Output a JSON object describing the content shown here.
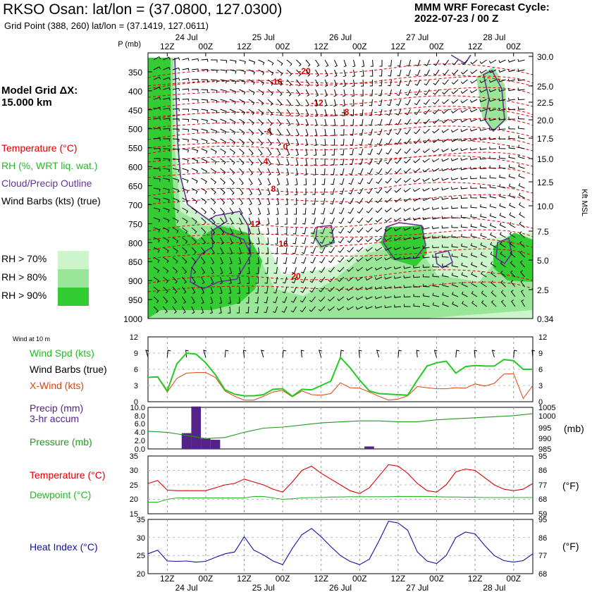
{
  "header": {
    "title": "RKSO Osan:  lat/lon = (37.0800, 127.0300)",
    "subtitle": "Grid Point (388, 260) lat/lon = (37.1419, 127.0611)",
    "forecast_label": "MMM WRF Forecast Cycle:",
    "forecast_cycle": "2022-07-23 / 00  Z",
    "grid_label": "Model Grid ΔX:",
    "grid_value": " 15.000 km"
  },
  "colors": {
    "temperature": "#dd0000",
    "rh": "#22bb22",
    "cloud": "#663399",
    "wind_speed": "#22cc22",
    "crosswind": "#dd4411",
    "precip": "#552288",
    "pressure": "#229922",
    "dewpoint": "#22bb22",
    "heat_index": "#1111aa",
    "rh70": "#ccf5cc",
    "rh80": "#99e699",
    "rh90": "#33cc33"
  },
  "legend": {
    "temperature": "Temperature (°C)",
    "rh": "RH (%, WRT liq. wat.)",
    "cloud": "Cloud/Precip Outline",
    "wind_barbs": "Wind Barbs (kts) (true)",
    "rh70": "RH > 70%",
    "rh80": "RH > 80%",
    "rh90": "RH > 90%"
  },
  "time_axis": {
    "top_labels": [
      "12Z",
      "00Z",
      "12Z",
      "00Z",
      "12Z",
      "00Z",
      "12Z",
      "00Z",
      "12Z",
      "00Z"
    ],
    "date_labels": [
      "24 Jul",
      "25 Jul",
      "26 Jul",
      "27 Jul",
      "28 Jul"
    ]
  },
  "chart_data": [
    {
      "type": "heatmap",
      "name": "cross_section",
      "y_left_label": "P (mb)",
      "y_right_label": "Kft MSL",
      "pressure_ticks": [
        350,
        400,
        450,
        500,
        550,
        600,
        650,
        700,
        750,
        800,
        850,
        900,
        950,
        1000
      ],
      "height_ticks": [
        "30.0",
        "25.0",
        "22.5",
        "20.0",
        "17.5",
        "15.0",
        "12.5",
        "10.0",
        "7.5",
        "5.0",
        "2.5",
        "0.34"
      ],
      "temperature_contour_labels": [
        "-20",
        "-16",
        "-12",
        "-8",
        "-4",
        "0",
        "4",
        "8",
        "12",
        "16",
        "20"
      ]
    },
    {
      "type": "line",
      "name": "surface_wind",
      "section_label": "Wind at 10 m",
      "labels": [
        "Wind Spd (kts)",
        "Wind Barbs (true)",
        "X-Wind (kts)"
      ],
      "y_ticks": [
        "12",
        "9",
        "6",
        "3",
        "0"
      ],
      "ylim": [
        0,
        12
      ],
      "x": [
        0,
        3,
        6,
        9,
        12,
        15,
        18,
        21,
        24,
        27,
        30,
        33,
        36,
        39,
        42,
        45,
        48,
        51,
        54,
        57,
        60,
        63,
        66,
        69,
        72,
        75,
        78,
        81,
        84,
        87,
        90,
        93,
        96,
        99,
        102,
        105,
        108,
        111,
        114,
        117,
        120
      ],
      "series": [
        {
          "name": "Wind Spd (kts)",
          "values": [
            4.5,
            4.6,
            2,
            7,
            9,
            8.8,
            7.2,
            5,
            2.2,
            1.4,
            1.1,
            1.1,
            1.3,
            2.3,
            2.4,
            1,
            2.3,
            2.2,
            3,
            3.8,
            8.2,
            6.3,
            4,
            2,
            1.5,
            1.4,
            1.3,
            1.2,
            4,
            6.6,
            7.2,
            7.5,
            5.3,
            6.5,
            6.7,
            6.6,
            6.6,
            7.8,
            7.6,
            6,
            6
          ]
        },
        {
          "name": "X-Wind (kts)",
          "values": [
            4.5,
            4.5,
            1.8,
            4.3,
            5.3,
            5.4,
            5.4,
            4.5,
            2,
            1,
            0.3,
            0.3,
            1,
            1.8,
            2.1,
            0.9,
            2,
            1.3,
            1.2,
            1.5,
            3.5,
            2.6,
            2.5,
            1.8,
            1,
            0.3,
            0.5,
            1.1,
            2.8,
            2.6,
            2.4,
            2.4,
            2.6,
            2.5,
            3.3,
            2.9,
            3.4,
            5.1,
            5.2,
            0.6,
            3
          ]
        }
      ]
    },
    {
      "type": "bar",
      "name": "precipitation",
      "labels": [
        "Precip (mm)",
        "3-hr accum"
      ],
      "y_ticks": [
        "10.0",
        "8.0",
        "6.0",
        "4.0",
        "2.0",
        "0.0"
      ],
      "ylim": [
        0,
        10
      ],
      "x": [
        12,
        15,
        18,
        21,
        69
      ],
      "values": [
        3.8,
        10.2,
        2.5,
        2.2,
        0.6
      ]
    },
    {
      "type": "line",
      "name": "pressure",
      "labels": [
        "Pressure (mb)"
      ],
      "right_label": "(mb)",
      "y_ticks": [
        "1005",
        "1000",
        "995",
        "990",
        "985"
      ],
      "ylim": [
        985,
        1005
      ],
      "x": [
        0,
        6,
        12,
        18,
        24,
        30,
        36,
        42,
        48,
        54,
        60,
        66,
        72,
        78,
        84,
        90,
        96,
        102,
        108,
        114,
        120
      ],
      "values": [
        993.5,
        993,
        991.5,
        990,
        990.5,
        993,
        995,
        995.5,
        996.5,
        997.5,
        998,
        998.5,
        998.5,
        998,
        998,
        999,
        999.5,
        1000,
        1000.5,
        1001,
        1002
      ]
    },
    {
      "type": "line",
      "name": "temperature_dewpoint",
      "labels": [
        "Temperature (°C)",
        "Dewpoint (°C)"
      ],
      "right_label": "(°F)",
      "y_ticks_left": [
        "35",
        "30",
        "25",
        "20",
        "15"
      ],
      "y_ticks_right": [
        "95",
        "86",
        "77",
        "68",
        "59"
      ],
      "ylim": [
        15,
        35
      ],
      "x": [
        0,
        3,
        6,
        9,
        12,
        15,
        18,
        21,
        24,
        27,
        30,
        33,
        36,
        39,
        42,
        45,
        48,
        51,
        54,
        57,
        60,
        63,
        66,
        69,
        72,
        75,
        78,
        81,
        84,
        87,
        90,
        93,
        96,
        99,
        102,
        105,
        108,
        111,
        114,
        117,
        120
      ],
      "series": [
        {
          "name": "Temperature (°C)",
          "values": [
            25.5,
            26.5,
            23.2,
            23,
            23,
            23,
            23,
            24,
            25,
            25.5,
            27,
            26,
            25,
            23.5,
            22.5,
            26,
            30,
            31.5,
            29,
            27,
            25,
            23,
            22,
            24,
            28,
            32,
            31.5,
            29,
            25.5,
            23,
            22.5,
            25,
            29.5,
            30.5,
            30,
            27.5,
            25,
            23.5,
            23,
            23.5,
            25.5
          ]
        },
        {
          "name": "Dewpoint (°C)",
          "values": [
            19,
            19,
            20,
            20.5,
            20.5,
            20.5,
            20.5,
            20.5,
            20.5,
            20.5,
            20.5,
            21,
            21,
            20.5,
            20,
            20.2,
            20.5,
            20.6,
            20.6,
            20.8,
            20.8,
            20.9,
            20.9,
            20.9,
            20.9,
            20.9,
            21,
            21,
            21,
            21,
            20.9,
            20.8,
            20.8,
            20.7,
            20.7,
            20.6,
            20.6,
            20.6,
            20.6,
            20.6,
            20.6
          ]
        }
      ]
    },
    {
      "type": "line",
      "name": "heat_index",
      "labels": [
        "Heat Index (°C)"
      ],
      "right_label": "(°F)",
      "y_ticks_left": [
        "35",
        "30",
        "25",
        "20"
      ],
      "y_ticks_right": [
        "95",
        "86",
        "77",
        "68"
      ],
      "ylim": [
        20,
        35
      ],
      "x": [
        0,
        3,
        6,
        9,
        12,
        15,
        18,
        21,
        24,
        27,
        30,
        33,
        36,
        39,
        42,
        45,
        48,
        51,
        54,
        57,
        60,
        63,
        66,
        69,
        72,
        75,
        78,
        81,
        84,
        87,
        90,
        93,
        96,
        99,
        102,
        105,
        108,
        111,
        114,
        117,
        120
      ],
      "values": [
        25.5,
        26.5,
        23.5,
        23.4,
        23.5,
        23.2,
        23.4,
        24.5,
        25.5,
        26,
        30.2,
        26.5,
        25.2,
        23.5,
        22.5,
        27,
        30.8,
        32.5,
        30.2,
        27.5,
        25,
        23.4,
        22.5,
        24,
        29,
        34.5,
        34,
        32,
        26,
        23.5,
        22.8,
        25,
        30,
        31.5,
        31,
        27.8,
        25,
        23.6,
        23.2,
        23.6,
        25.5
      ]
    }
  ],
  "bottom_axis": {
    "labels": [
      "12Z",
      "00Z",
      "12Z",
      "00Z",
      "12Z",
      "00Z",
      "12Z",
      "00Z",
      "12Z",
      "00Z"
    ],
    "date_labels": [
      "24 Jul",
      "25 Jul",
      "26 Jul",
      "27 Jul",
      "28 Jul"
    ]
  }
}
